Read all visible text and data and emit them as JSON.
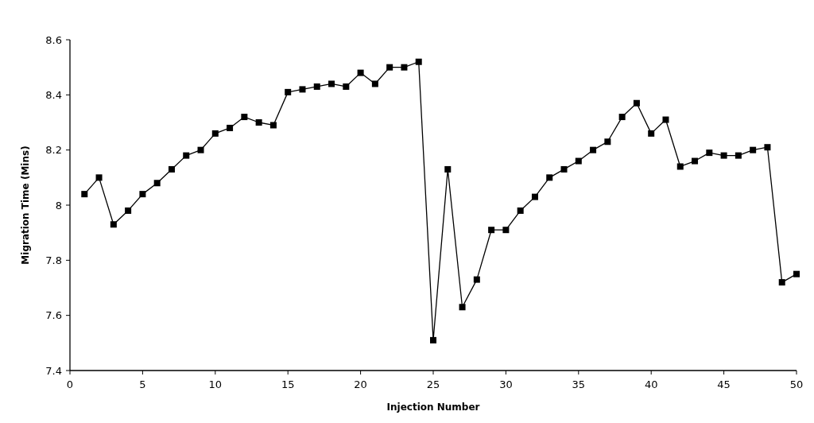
{
  "chart_data": {
    "type": "line",
    "xlabel": "Injection Number",
    "ylabel": "Migration Time (Mins)",
    "x": [
      1,
      2,
      3,
      4,
      5,
      6,
      7,
      8,
      9,
      10,
      11,
      12,
      13,
      14,
      15,
      16,
      17,
      18,
      19,
      20,
      21,
      22,
      23,
      24,
      25,
      26,
      27,
      28,
      29,
      30,
      31,
      32,
      33,
      34,
      35,
      36,
      37,
      38,
      39,
      40,
      41,
      42,
      43,
      44,
      45,
      46,
      47,
      48,
      49,
      50
    ],
    "series": [
      {
        "color": "#000000",
        "values": [
          8.04,
          8.1,
          7.93,
          7.98,
          8.04,
          8.08,
          8.13,
          8.18,
          8.2,
          8.26,
          8.28,
          8.32,
          8.3,
          8.29,
          8.41,
          8.42,
          8.43,
          8.44,
          8.43,
          8.48,
          8.44,
          8.5,
          8.5,
          8.52,
          7.51,
          8.13,
          7.63,
          7.73,
          7.91,
          7.91,
          7.98,
          8.03,
          8.1,
          8.13,
          8.16,
          8.2,
          8.23,
          8.32,
          8.37,
          8.26,
          8.31,
          8.14,
          8.16,
          8.19,
          8.18,
          8.18,
          8.2,
          8.21,
          7.72,
          7.75
        ]
      }
    ],
    "xlim": [
      0,
      50
    ],
    "xticks": [
      0,
      5,
      10,
      15,
      20,
      25,
      30,
      35,
      40,
      45,
      50
    ],
    "ylim": [
      7.4,
      8.6
    ],
    "yticks": [
      {
        "value": 7.4,
        "label": "7.4"
      },
      {
        "value": 7.6,
        "label": "7.6"
      },
      {
        "value": 7.8,
        "label": "7.8"
      },
      {
        "value": 8,
        "label": "8"
      },
      {
        "value": 8.2,
        "label": "8.2"
      },
      {
        "value": 8.4,
        "label": "8.4"
      },
      {
        "value": 8.6,
        "label": "8.6"
      }
    ],
    "grid": false,
    "marker": "square",
    "line_style": "solid"
  }
}
